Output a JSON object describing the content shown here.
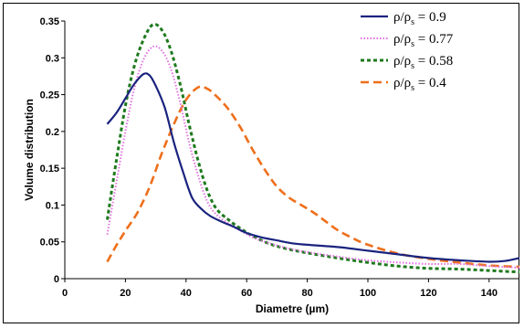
{
  "chart_data": {
    "type": "line",
    "xlabel": "Diametre (µm)",
    "ylabel": "Volume distribution",
    "xlim": [
      0,
      150
    ],
    "ylim": [
      0,
      0.35
    ],
    "x_ticks": [
      "0",
      "20",
      "40",
      "60",
      "80",
      "100",
      "120",
      "140"
    ],
    "y_ticks": [
      "0",
      "0.05",
      "0.1",
      "0.15",
      "0.2",
      "0.25",
      "0.3",
      "0.35"
    ],
    "grid": false,
    "legend_position": "top-right",
    "series": [
      {
        "name": "ρ/ρs = 0.9",
        "legend_main": "ρ/ρ",
        "legend_sub": "s",
        "legend_tail": " = 0.9",
        "color": "#1a237e",
        "dash": "solid",
        "points": [
          [
            14,
            0.21
          ],
          [
            17,
            0.225
          ],
          [
            20,
            0.245
          ],
          [
            23,
            0.265
          ],
          [
            26,
            0.278
          ],
          [
            28,
            0.276
          ],
          [
            30,
            0.262
          ],
          [
            33,
            0.232
          ],
          [
            36,
            0.185
          ],
          [
            39,
            0.145
          ],
          [
            42,
            0.11
          ],
          [
            45,
            0.095
          ],
          [
            48,
            0.085
          ],
          [
            52,
            0.077
          ],
          [
            56,
            0.07
          ],
          [
            60,
            0.062
          ],
          [
            65,
            0.056
          ],
          [
            70,
            0.052
          ],
          [
            75,
            0.048
          ],
          [
            80,
            0.046
          ],
          [
            90,
            0.043
          ],
          [
            100,
            0.038
          ],
          [
            110,
            0.033
          ],
          [
            120,
            0.028
          ],
          [
            130,
            0.025
          ],
          [
            140,
            0.023
          ],
          [
            145,
            0.024
          ],
          [
            150,
            0.028
          ]
        ]
      },
      {
        "name": "ρ/ρs = 0.77",
        "legend_main": "ρ/ρ",
        "legend_sub": "s",
        "legend_tail": " = 0.77",
        "color": "#e070e0",
        "dash": "dotted",
        "points": [
          [
            14,
            0.06
          ],
          [
            17,
            0.13
          ],
          [
            20,
            0.2
          ],
          [
            23,
            0.26
          ],
          [
            26,
            0.298
          ],
          [
            29,
            0.315
          ],
          [
            32,
            0.31
          ],
          [
            35,
            0.285
          ],
          [
            38,
            0.24
          ],
          [
            41,
            0.185
          ],
          [
            44,
            0.14
          ],
          [
            47,
            0.105
          ],
          [
            50,
            0.087
          ],
          [
            54,
            0.075
          ],
          [
            58,
            0.065
          ],
          [
            62,
            0.056
          ],
          [
            66,
            0.05
          ],
          [
            70,
            0.045
          ],
          [
            75,
            0.04
          ],
          [
            80,
            0.036
          ],
          [
            90,
            0.03
          ],
          [
            100,
            0.025
          ],
          [
            110,
            0.022
          ],
          [
            120,
            0.02
          ],
          [
            130,
            0.02
          ],
          [
            140,
            0.017
          ],
          [
            150,
            0.015
          ]
        ]
      },
      {
        "name": "ρ/ρs = 0.58",
        "legend_main": "ρ/ρ",
        "legend_sub": "s",
        "legend_tail": " = 0.58",
        "color": "#1e7a1e",
        "dash": "dashed-short",
        "points": [
          [
            14,
            0.08
          ],
          [
            17,
            0.16
          ],
          [
            20,
            0.235
          ],
          [
            23,
            0.29
          ],
          [
            26,
            0.325
          ],
          [
            29,
            0.345
          ],
          [
            32,
            0.338
          ],
          [
            35,
            0.31
          ],
          [
            38,
            0.265
          ],
          [
            41,
            0.21
          ],
          [
            44,
            0.16
          ],
          [
            47,
            0.12
          ],
          [
            50,
            0.095
          ],
          [
            54,
            0.08
          ],
          [
            58,
            0.068
          ],
          [
            62,
            0.058
          ],
          [
            66,
            0.05
          ],
          [
            70,
            0.044
          ],
          [
            75,
            0.039
          ],
          [
            80,
            0.035
          ],
          [
            90,
            0.028
          ],
          [
            100,
            0.022
          ],
          [
            110,
            0.017
          ],
          [
            120,
            0.014
          ],
          [
            130,
            0.013
          ],
          [
            140,
            0.011
          ],
          [
            150,
            0.009
          ]
        ]
      },
      {
        "name": "ρ/ρs = 0.4",
        "legend_main": "ρ/ρ",
        "legend_sub": "s",
        "legend_tail": " = 0.4",
        "color": "#ee6f1c",
        "dash": "dashed-long",
        "points": [
          [
            14,
            0.023
          ],
          [
            17,
            0.045
          ],
          [
            20,
            0.065
          ],
          [
            24,
            0.09
          ],
          [
            28,
            0.125
          ],
          [
            32,
            0.17
          ],
          [
            36,
            0.21
          ],
          [
            40,
            0.243
          ],
          [
            44,
            0.26
          ],
          [
            47,
            0.258
          ],
          [
            50,
            0.248
          ],
          [
            54,
            0.23
          ],
          [
            58,
            0.205
          ],
          [
            62,
            0.175
          ],
          [
            66,
            0.148
          ],
          [
            70,
            0.125
          ],
          [
            74,
            0.11
          ],
          [
            78,
            0.1
          ],
          [
            82,
            0.09
          ],
          [
            86,
            0.078
          ],
          [
            90,
            0.066
          ],
          [
            95,
            0.055
          ],
          [
            100,
            0.046
          ],
          [
            110,
            0.034
          ],
          [
            120,
            0.027
          ],
          [
            130,
            0.022
          ],
          [
            140,
            0.018
          ],
          [
            150,
            0.016
          ]
        ]
      }
    ]
  }
}
